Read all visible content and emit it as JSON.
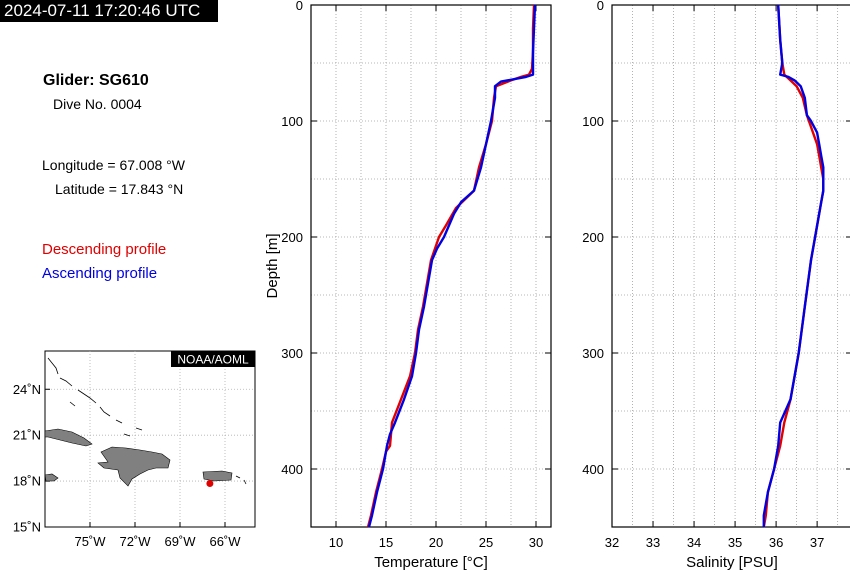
{
  "header": {
    "timestamp": "2024-07-11 17:20:46 UTC"
  },
  "info": {
    "glider": "Glider: SG610",
    "dive": "Dive No. 0004",
    "longitude": "Longitude = 67.008 °W",
    "latitude": "Latitude = 17.843 °N"
  },
  "legend": {
    "descending": "Descending profile",
    "ascending": "Ascending profile",
    "descending_color": "#e00000",
    "ascending_color": "#0000e0"
  },
  "map": {
    "credit": "NOAA/AOML",
    "lat_ticks": [
      "24˚N",
      "21˚N",
      "18˚N",
      "15˚N"
    ],
    "lon_ticks": [
      "75˚W",
      "72˚W",
      "69˚W",
      "66˚W"
    ],
    "lat_range": [
      15,
      26.5
    ],
    "lon_range": [
      -78,
      -64
    ],
    "glider_position": {
      "lon": -67.008,
      "lat": 17.843,
      "color": "#e00000"
    },
    "land_color": "#808080"
  },
  "chart_data": [
    {
      "type": "line",
      "xlabel": "Temperature [°C]",
      "ylabel": "Depth [m]",
      "xlim": [
        7.5,
        31.5
      ],
      "ylim": [
        450,
        0
      ],
      "xticks": [
        10,
        15,
        20,
        25,
        30
      ],
      "yticks": [
        0,
        100,
        200,
        300,
        400
      ],
      "grid": true,
      "series": [
        {
          "name": "Descending profile",
          "color": "#e00000",
          "depth": [
            0,
            20,
            40,
            55,
            60,
            62,
            65,
            70,
            80,
            100,
            120,
            140,
            160,
            175,
            190,
            200,
            220,
            240,
            260,
            280,
            300,
            320,
            340,
            360,
            380,
            385,
            400,
            420,
            440,
            450
          ],
          "values": [
            29.8,
            29.7,
            29.7,
            29.6,
            29.3,
            28.5,
            27.5,
            26.0,
            25.8,
            25.6,
            25.0,
            24.3,
            23.8,
            22.0,
            21.0,
            20.3,
            19.5,
            19.1,
            18.7,
            18.2,
            17.9,
            17.4,
            16.5,
            15.6,
            15.4,
            15.0,
            14.6,
            14.0,
            13.5,
            13.2
          ]
        },
        {
          "name": "Ascending profile",
          "color": "#0000e0",
          "depth": [
            0,
            20,
            40,
            60,
            62,
            66,
            70,
            80,
            100,
            120,
            140,
            160,
            170,
            180,
            200,
            210,
            220,
            240,
            260,
            280,
            300,
            320,
            340,
            360,
            370,
            380,
            400,
            420,
            440,
            450
          ],
          "values": [
            29.9,
            29.8,
            29.7,
            29.7,
            29.0,
            26.5,
            25.9,
            25.9,
            25.5,
            25.0,
            24.5,
            23.8,
            22.5,
            21.8,
            20.8,
            20.1,
            19.6,
            19.2,
            18.8,
            18.3,
            18.0,
            17.6,
            16.8,
            15.9,
            15.4,
            15.1,
            14.7,
            14.1,
            13.6,
            13.3
          ]
        }
      ]
    },
    {
      "type": "line",
      "xlabel": "Salinity [PSU]",
      "ylabel": "",
      "xlim": [
        32,
        37.85
      ],
      "ylim": [
        450,
        0
      ],
      "xticks": [
        32,
        33,
        34,
        35,
        36,
        37
      ],
      "yticks": [
        0,
        100,
        200,
        300,
        400
      ],
      "grid": true,
      "series": [
        {
          "name": "Descending profile",
          "color": "#e00000",
          "depth": [
            0,
            30,
            50,
            60,
            65,
            70,
            80,
            95,
            100,
            110,
            120,
            130,
            140,
            150,
            160,
            170,
            200,
            220,
            260,
            300,
            340,
            360,
            380,
            400,
            420,
            440,
            450
          ],
          "values": [
            36.05,
            36.1,
            36.15,
            36.2,
            36.35,
            36.5,
            36.65,
            36.75,
            36.8,
            36.9,
            37.0,
            37.05,
            37.1,
            37.15,
            37.15,
            37.1,
            36.95,
            36.85,
            36.7,
            36.55,
            36.35,
            36.2,
            36.1,
            35.95,
            35.8,
            35.75,
            35.7
          ]
        },
        {
          "name": "Ascending profile",
          "color": "#0000e0",
          "depth": [
            0,
            30,
            50,
            60,
            62,
            65,
            70,
            80,
            95,
            100,
            110,
            120,
            130,
            140,
            150,
            160,
            170,
            200,
            220,
            260,
            300,
            340,
            360,
            380,
            400,
            420,
            440,
            450
          ],
          "values": [
            36.05,
            36.1,
            36.15,
            36.1,
            36.3,
            36.45,
            36.6,
            36.7,
            36.75,
            36.85,
            37.0,
            37.05,
            37.1,
            37.15,
            37.15,
            37.15,
            37.1,
            36.95,
            36.85,
            36.7,
            36.55,
            36.35,
            36.1,
            36.05,
            35.95,
            35.8,
            35.7,
            35.7
          ]
        }
      ]
    }
  ]
}
